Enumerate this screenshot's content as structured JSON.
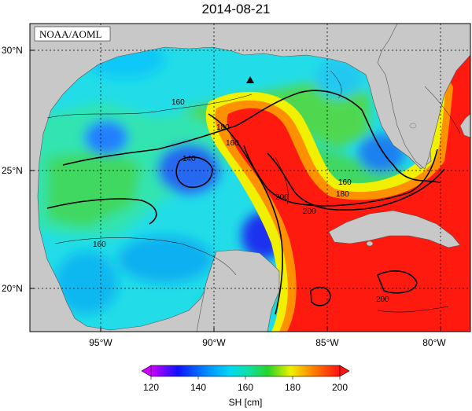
{
  "title": "2014-08-21",
  "source": "NOAA/AOML",
  "axes": {
    "lat_ticks": [
      "30°N",
      "25°N",
      "20°N"
    ],
    "lon_ticks": [
      "95°W",
      "90°W",
      "85°W",
      "80°W"
    ]
  },
  "contour_labels": [
    "160",
    "180",
    "160",
    "140",
    "160",
    "180",
    "160",
    "200",
    "200",
    "200",
    "180",
    "160",
    "200"
  ],
  "colorbar": {
    "title": "SH [cm]",
    "tick_labels": [
      "120",
      "140",
      "160",
      "180",
      "200"
    ],
    "range": [
      120,
      200
    ],
    "colors": [
      "#d000ff",
      "#1010ff",
      "#00b8ff",
      "#10e8c8",
      "#28d428",
      "#f0f000",
      "#ff8000",
      "#ff1010"
    ]
  },
  "colors": {
    "land": "#c8c8c8",
    "warm_core": "#ff1a10",
    "cold_core": "#1a40f0",
    "background_water": "#20d8e8"
  },
  "markers": [
    {
      "name": "observation-point",
      "symbol": "triangle"
    }
  ]
}
